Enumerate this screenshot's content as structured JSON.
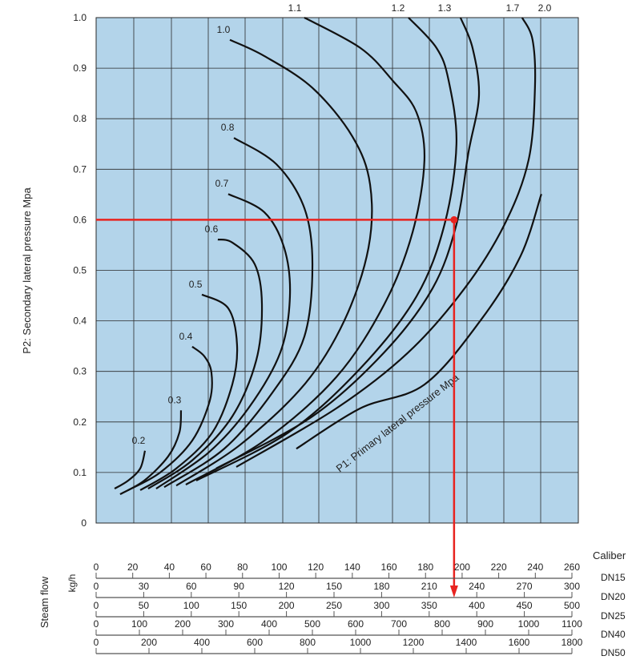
{
  "chart_data": {
    "type": "line",
    "title": "",
    "ylabel": "P2: Secondary lateral pressure Mpa",
    "diagonal_label": "P1: Primary lateral pressure Mpa",
    "ylim": [
      0,
      1.0
    ],
    "xlim": [
      0,
      263.5
    ],
    "x_units": "steam flow, DN15 scale (kg/h)",
    "yticks": [
      "0",
      "0.1",
      "0.2",
      "0.3",
      "0.4",
      "0.5",
      "0.6",
      "0.7",
      "0.8",
      "0.9",
      "1.0"
    ],
    "grid": true,
    "colors": {
      "plot_bg": "#b3d4ea",
      "grid": "#2a2a2a",
      "curve": "#111111",
      "highlight": "#e8231f"
    },
    "series": [
      {
        "name": "0.2",
        "points": [
          [
            10.1,
            0.068
          ],
          [
            17.5,
            0.084
          ],
          [
            24.1,
            0.108
          ],
          [
            26.7,
            0.143
          ]
        ]
      },
      {
        "name": "0.3",
        "points": [
          [
            13.1,
            0.057
          ],
          [
            26.3,
            0.084
          ],
          [
            39.4,
            0.132
          ],
          [
            45.5,
            0.179
          ],
          [
            46.4,
            0.223
          ]
        ]
      },
      {
        "name": "0.4",
        "points": [
          [
            17.5,
            0.065
          ],
          [
            35,
            0.1
          ],
          [
            52.5,
            0.163
          ],
          [
            62.1,
            0.242
          ],
          [
            63,
            0.298
          ],
          [
            59.1,
            0.33
          ],
          [
            52.5,
            0.349
          ]
        ]
      },
      {
        "name": "0.5",
        "points": [
          [
            24.1,
            0.065
          ],
          [
            43.8,
            0.108
          ],
          [
            63.5,
            0.179
          ],
          [
            74.4,
            0.274
          ],
          [
            77,
            0.353
          ],
          [
            72.2,
            0.425
          ],
          [
            57.8,
            0.452
          ]
        ]
      },
      {
        "name": "0.6",
        "points": [
          [
            28.4,
            0.068
          ],
          [
            52.5,
            0.124
          ],
          [
            74.4,
            0.211
          ],
          [
            87.5,
            0.322
          ],
          [
            90.6,
            0.433
          ],
          [
            86.7,
            0.512
          ],
          [
            74.4,
            0.555
          ],
          [
            66.5,
            0.561
          ]
        ]
      },
      {
        "name": "0.7",
        "points": [
          [
            32.8,
            0.068
          ],
          [
            61.3,
            0.139
          ],
          [
            83.2,
            0.227
          ],
          [
            100.7,
            0.338
          ],
          [
            105.9,
            0.448
          ],
          [
            102.8,
            0.544
          ],
          [
            91.9,
            0.615
          ],
          [
            72.2,
            0.651
          ]
        ]
      },
      {
        "name": "0.8",
        "points": [
          [
            37.2,
            0.071
          ],
          [
            70,
            0.147
          ],
          [
            96.3,
            0.258
          ],
          [
            113.8,
            0.369
          ],
          [
            118.2,
            0.512
          ],
          [
            113.8,
            0.623
          ],
          [
            98.5,
            0.71
          ],
          [
            75.3,
            0.762
          ]
        ]
      },
      {
        "name": "1.0",
        "points": [
          [
            43.8,
            0.074
          ],
          [
            78.8,
            0.155
          ],
          [
            113.8,
            0.274
          ],
          [
            135.7,
            0.401
          ],
          [
            148.8,
            0.544
          ],
          [
            149.7,
            0.67
          ],
          [
            140,
            0.765
          ],
          [
            118.2,
            0.861
          ],
          [
            91.9,
            0.924
          ],
          [
            73.1,
            0.956
          ]
        ]
      },
      {
        "name": "1.1",
        "points": [
          [
            49,
            0.076
          ],
          [
            91.9,
            0.163
          ],
          [
            131.3,
            0.289
          ],
          [
            157.5,
            0.433
          ],
          [
            172.9,
            0.575
          ],
          [
            179.4,
            0.718
          ],
          [
            175,
            0.813
          ],
          [
            161.9,
            0.876
          ],
          [
            144.4,
            0.94
          ],
          [
            113.8,
            1.0
          ]
        ]
      },
      {
        "name": "1.2",
        "points": [
          [
            54.7,
            0.084
          ],
          [
            105,
            0.179
          ],
          [
            144.4,
            0.306
          ],
          [
            175,
            0.448
          ],
          [
            190.4,
            0.591
          ],
          [
            196.9,
            0.75
          ],
          [
            192.6,
            0.876
          ],
          [
            186,
            0.94
          ],
          [
            170.7,
            1.0
          ]
        ]
      },
      {
        "name": "1.3",
        "points": [
          [
            65.6,
            0.108
          ],
          [
            118.2,
            0.211
          ],
          [
            157.5,
            0.338
          ],
          [
            183.8,
            0.464
          ],
          [
            196.9,
            0.591
          ],
          [
            203.5,
            0.734
          ],
          [
            209.2,
            0.845
          ],
          [
            205.7,
            0.94
          ],
          [
            199.1,
            1.0
          ]
        ]
      },
      {
        "name": "1.7",
        "points": [
          [
            76.6,
            0.111
          ],
          [
            131.3,
            0.227
          ],
          [
            170.7,
            0.338
          ],
          [
            201.3,
            0.464
          ],
          [
            223.2,
            0.591
          ],
          [
            236.3,
            0.718
          ],
          [
            239.8,
            0.861
          ],
          [
            238.5,
            0.956
          ],
          [
            232.8,
            1.0
          ]
        ]
      },
      {
        "name": "2.0",
        "points": [
          [
            109.4,
            0.147
          ],
          [
            144.4,
            0.227
          ],
          [
            179.4,
            0.274
          ],
          [
            210.1,
            0.401
          ],
          [
            231.9,
            0.528
          ],
          [
            243.3,
            0.651
          ]
        ]
      }
    ],
    "highlight": {
      "p2": 0.6,
      "flow_dn15": 195.6,
      "p1": "1.3"
    },
    "flow_axis": {
      "title": "Steam flow",
      "units": "kg/h",
      "caliber_label": "Caliber",
      "scales": [
        {
          "caliber": "DN15",
          "max": 260,
          "ticks": [
            0,
            20,
            40,
            60,
            80,
            100,
            120,
            140,
            160,
            180,
            200,
            220,
            240,
            260
          ]
        },
        {
          "caliber": "DN20",
          "max": 300,
          "ticks": [
            0,
            30,
            60,
            90,
            120,
            150,
            180,
            210,
            240,
            270,
            300
          ]
        },
        {
          "caliber": "DN25",
          "max": 500,
          "ticks": [
            0,
            50,
            100,
            150,
            200,
            250,
            300,
            350,
            400,
            450,
            500
          ]
        },
        {
          "caliber": "DN40",
          "max": 1100,
          "ticks": [
            0,
            100,
            200,
            300,
            400,
            500,
            600,
            700,
            800,
            900,
            1000,
            1100
          ]
        },
        {
          "caliber": "DN50",
          "max": 1800,
          "ticks": [
            0,
            200,
            400,
            600,
            800,
            1000,
            1200,
            1400,
            1600,
            1800
          ]
        }
      ]
    }
  }
}
